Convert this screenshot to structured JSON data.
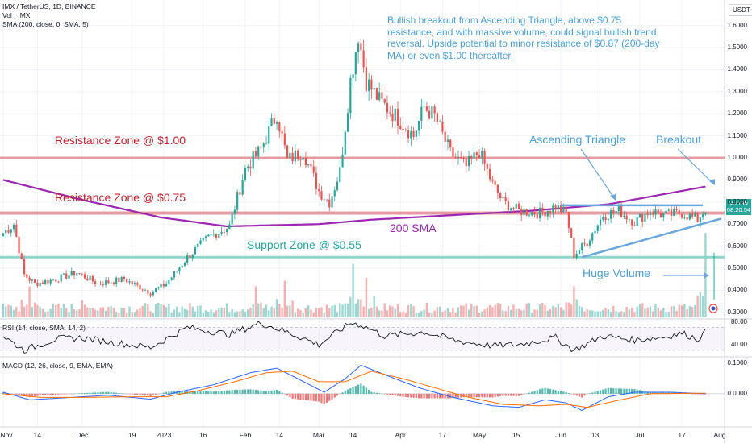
{
  "header": {
    "symbol_line": "IMX / TetherUS, 1D, BINANCE",
    "vol_line": "Vol · IMX",
    "sma_line": "SMA (200, close, 0, SMA, 5)",
    "rsi_line": "RSI (14, close, SMA, 14, 2)",
    "macd_line": "MACD (12, 26, close, 9, EMA, EMA)",
    "currency": "USDT"
  },
  "annotations": {
    "note": "Bullish breakout from Ascending Triangle, above $0.75 resistance, and with massive volume, could signal bullish trend reversal. Upside potential to minor resistance of $0.87 (200-day MA) or even $1.00 thereafter.",
    "resistance_1": "Resistance Zone @ $1.00",
    "resistance_075": "Resistance Zone @ $0.75",
    "support": "Support Zone @ $0.55",
    "sma_label": "200 SMA",
    "triangle": "Ascending Triangle",
    "breakout": "Breakout",
    "volume": "Huge Volume"
  },
  "price_tag": {
    "price": "0.7746",
    "time": "08:20:54"
  },
  "colors": {
    "up": "#26a69a",
    "down": "#ef5350",
    "sma": "#9c27b0",
    "zone": "#e08a8f",
    "support": "#7fd1c7",
    "triangle": "#6aa7dc",
    "note": "#4a9fd8"
  },
  "chart_data": [
    {
      "type": "candlestick",
      "title": "IMX / TetherUS, 1D, BINANCE",
      "y_ticks": [
        "1.6000",
        "1.5000",
        "1.4000",
        "1.3000",
        "1.2000",
        "1.1000",
        "1.0000",
        "0.9000",
        "0.8000",
        "0.7000",
        "0.6000",
        "0.5000",
        "0.4000",
        "0.3000"
      ],
      "y_tick_values": [
        1.6,
        1.5,
        1.4,
        1.3,
        1.2,
        1.1,
        1.0,
        0.9,
        0.8,
        0.7,
        0.6,
        0.5,
        0.4,
        0.3
      ],
      "ylim": [
        0.27,
        1.65
      ],
      "x_ticks": [
        "Nov",
        "14",
        "Dec",
        "19",
        "2023",
        "16",
        "Feb",
        "14",
        "Mar",
        "14",
        "Apr",
        "17",
        "May",
        "15",
        "Jun",
        "13",
        "Jul",
        "17",
        "Aug"
      ],
      "x_tick_days": [
        0,
        13,
        30,
        49,
        61,
        76,
        92,
        105,
        120,
        133,
        151,
        167,
        181,
        195,
        212,
        225,
        242,
        258,
        273
      ],
      "levels": [
        {
          "name": "Resistance Zone @ $1.00",
          "value": 1.0
        },
        {
          "name": "Resistance Zone @ $0.75",
          "value": 0.75
        },
        {
          "name": "Support Zone @ $0.55",
          "value": 0.55
        }
      ],
      "close_keyframes": [
        [
          0,
          0.66
        ],
        [
          4,
          0.7
        ],
        [
          8,
          0.47
        ],
        [
          12,
          0.43
        ],
        [
          20,
          0.45
        ],
        [
          28,
          0.48
        ],
        [
          36,
          0.43
        ],
        [
          46,
          0.45
        ],
        [
          56,
          0.39
        ],
        [
          62,
          0.43
        ],
        [
          70,
          0.55
        ],
        [
          78,
          0.64
        ],
        [
          86,
          0.69
        ],
        [
          92,
          0.95
        ],
        [
          98,
          1.04
        ],
        [
          104,
          1.2
        ],
        [
          108,
          0.99
        ],
        [
          114,
          1.03
        ],
        [
          120,
          0.85
        ],
        [
          124,
          0.8
        ],
        [
          128,
          0.94
        ],
        [
          132,
          1.35
        ],
        [
          135,
          1.56
        ],
        [
          138,
          1.35
        ],
        [
          143,
          1.26
        ],
        [
          150,
          1.18
        ],
        [
          156,
          1.1
        ],
        [
          160,
          1.23
        ],
        [
          164,
          1.19
        ],
        [
          170,
          1.02
        ],
        [
          176,
          0.96
        ],
        [
          181,
          1.03
        ],
        [
          186,
          0.88
        ],
        [
          190,
          0.8
        ],
        [
          196,
          0.76
        ],
        [
          204,
          0.75
        ],
        [
          210,
          0.78
        ],
        [
          214,
          0.75
        ],
        [
          217,
          0.56
        ],
        [
          222,
          0.62
        ],
        [
          228,
          0.74
        ],
        [
          234,
          0.76
        ],
        [
          240,
          0.71
        ],
        [
          246,
          0.76
        ],
        [
          252,
          0.74
        ],
        [
          258,
          0.75
        ],
        [
          264,
          0.72
        ],
        [
          267,
          0.77
        ]
      ],
      "sma200": [
        [
          0,
          0.9
        ],
        [
          30,
          0.81
        ],
        [
          60,
          0.73
        ],
        [
          85,
          0.69
        ],
        [
          120,
          0.7
        ],
        [
          140,
          0.72
        ],
        [
          170,
          0.74
        ],
        [
          200,
          0.76
        ],
        [
          230,
          0.79
        ],
        [
          267,
          0.87
        ]
      ]
    },
    {
      "type": "volume",
      "title": "Vol · IMX",
      "spikes": [
        [
          10,
          0.55
        ],
        [
          30,
          0.3
        ],
        [
          96,
          0.55
        ],
        [
          107,
          0.65
        ],
        [
          133,
          0.95
        ],
        [
          138,
          0.7
        ],
        [
          217,
          0.55
        ],
        [
          267,
          1.0
        ]
      ]
    },
    {
      "type": "line",
      "title": "RSI (14, close, SMA, 14, 2)",
      "y_ticks": [
        "80.00",
        "40.00"
      ],
      "y_tick_values": [
        80,
        40
      ],
      "ylim": [
        20,
        85
      ],
      "band": [
        30,
        70
      ]
    },
    {
      "type": "line",
      "title": "MACD (12, 26, close, 9, EMA, EMA)",
      "y_ticks": [
        "0.1000",
        "0.0000"
      ],
      "y_tick_values": [
        0.1,
        0.0
      ],
      "ylim": [
        -0.11,
        0.12
      ],
      "series": [
        {
          "name": "MACD"
        },
        {
          "name": "Signal"
        },
        {
          "name": "Histogram"
        }
      ]
    }
  ]
}
